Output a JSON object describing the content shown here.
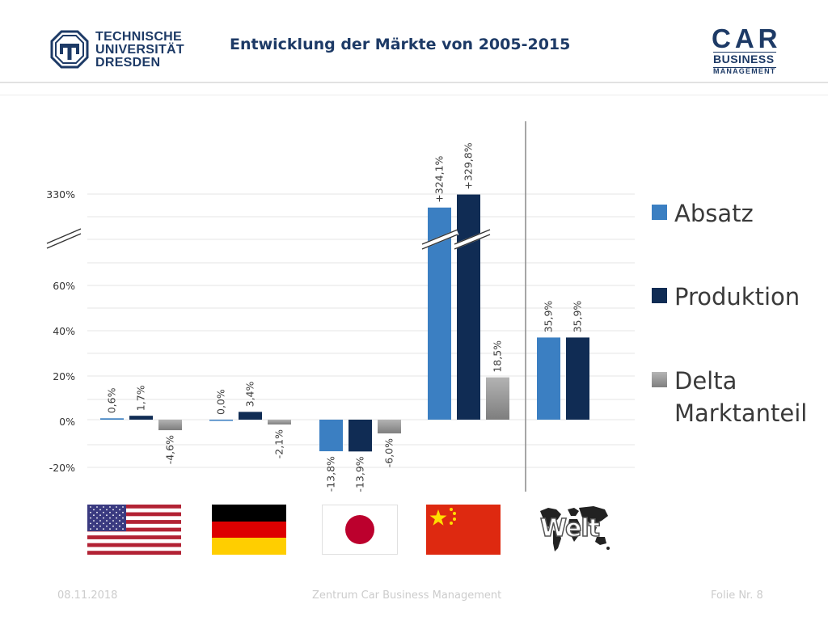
{
  "header": {
    "university_lines": [
      "TECHNISCHE",
      "UNIVERSITÄT",
      "DRESDEN"
    ],
    "title": "Entwicklung der Märkte von 2005-2015",
    "car_logo": {
      "big": "CAR",
      "line2": "BUSINESS",
      "line3": "MANAGEMENT"
    }
  },
  "chart_data": {
    "type": "bar",
    "categories": [
      "USA",
      "Deutschland",
      "Japan",
      "China",
      "Welt"
    ],
    "series": [
      {
        "name": "Absatz",
        "color": "#3b7fc2",
        "values": [
          0.6,
          0.0,
          -13.8,
          324.1,
          35.9
        ],
        "labels": [
          "0,6%",
          "0,0%",
          "-13,8%",
          "+324,1%",
          "35,9%"
        ]
      },
      {
        "name": "Produktion",
        "color": "#102c54",
        "values": [
          1.7,
          3.4,
          -13.9,
          329.8,
          35.9
        ],
        "labels": [
          "1,7%",
          "3,4%",
          "-13,9%",
          "+329,8%",
          "35,9%"
        ]
      },
      {
        "name": "Delta\nMarktanteil",
        "color": "#8f8f8f",
        "values": [
          -4.6,
          -2.1,
          -6.0,
          18.5,
          null
        ],
        "labels": [
          "-4,6%",
          "-2,1%",
          "-6,0%",
          "18,5%",
          null
        ]
      }
    ],
    "y_ticks": [
      "330%",
      "60%",
      "40%",
      "20%",
      "0%",
      "-20%"
    ],
    "axis_break": true,
    "gridlines": true,
    "legend_placement": "right",
    "legend": [
      "Absatz",
      "Produktion",
      "Delta\nMarktanteil"
    ],
    "category_icons": [
      "us-flag",
      "germany-flag",
      "japan-flag",
      "china-flag",
      "world-map"
    ],
    "world_label": "Welt"
  },
  "footer": {
    "date": "08.11.2018",
    "center": "Zentrum Car Business Management",
    "page": "Folie Nr. 8"
  }
}
